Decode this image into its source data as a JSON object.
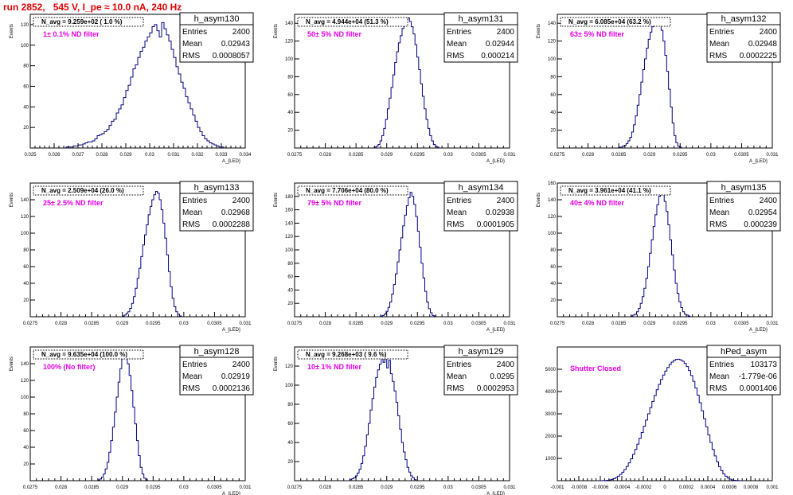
{
  "run_title": "run 2852,   545 V, I_pe ≈ 10.0 nA, 240 Hz",
  "colors": {
    "hist": "#000080",
    "magenta": "#e600e6",
    "title": "#e00000"
  },
  "chart_data": [
    {
      "type": "histogram",
      "id": "h_asym130",
      "stats": {
        "name": "h_asym130",
        "entries": "2400",
        "mean": "0.02943",
        "rms": "0.0008057"
      },
      "navg": "N_avg = 9.259e+02 ( 1.0 %)",
      "filter": "1± 0.1% ND filter",
      "ylabel": "Events",
      "xlabel": "A_{LED}",
      "xlim": [
        0.025,
        0.034
      ],
      "ylim": [
        0,
        130
      ],
      "xticks": [
        "0.025",
        "0.026",
        "0.027",
        "0.028",
        "0.029",
        "0.03",
        "0.031",
        "0.032",
        "0.033",
        "0.034"
      ],
      "yticks": [
        "20",
        "40",
        "60",
        "80",
        "100",
        "120"
      ],
      "ytick_values": [
        20,
        40,
        60,
        80,
        100,
        120
      ],
      "x_start": 0.0265,
      "bin_width": 0.0001,
      "counts": [
        1,
        1,
        1,
        2,
        2,
        3,
        3,
        4,
        5,
        6,
        6,
        7,
        9,
        12,
        13,
        14,
        16,
        18,
        22,
        26,
        28,
        34,
        38,
        42,
        49,
        56,
        61,
        69,
        77,
        81,
        88,
        94,
        98,
        104,
        108,
        112,
        118,
        120,
        114,
        108,
        122,
        116,
        110,
        104,
        96,
        88,
        79,
        72,
        64,
        58,
        50,
        44,
        38,
        32,
        26,
        20,
        16,
        12,
        9,
        7,
        5,
        4,
        3,
        2,
        1,
        1
      ]
    },
    {
      "type": "histogram",
      "id": "h_asym131",
      "stats": {
        "name": "h_asym131",
        "entries": "2400",
        "mean": "0.02944",
        "rms": "0.000214"
      },
      "navg": "N_avg = 4.944e+04 (51.3 %)",
      "filter": "50± 5% ND filter",
      "ylabel": "Events",
      "xlabel": "A_{LED}",
      "xlim": [
        0.0275,
        0.031
      ],
      "ylim": [
        0,
        150
      ],
      "xticks": [
        "0.0275",
        "0.028",
        "0.0285",
        "0.029",
        "0.0295",
        "0.03",
        "0.0305",
        "0.031"
      ],
      "yticks": [
        "20",
        "40",
        "60",
        "80",
        "100",
        "120",
        "140"
      ],
      "ytick_values": [
        20,
        40,
        60,
        80,
        100,
        120,
        140
      ],
      "x_start": 0.0288,
      "bin_width": 3e-05,
      "counts": [
        1,
        2,
        4,
        8,
        14,
        22,
        32,
        44,
        56,
        68,
        82,
        96,
        108,
        118,
        126,
        134,
        140,
        144,
        146,
        142,
        136,
        128,
        116,
        102,
        88,
        72,
        58,
        44,
        32,
        22,
        14,
        8,
        4,
        2,
        1
      ]
    },
    {
      "type": "histogram",
      "id": "h_asym132",
      "stats": {
        "name": "h_asym132",
        "entries": "2400",
        "mean": "0.02948",
        "rms": "0.0002225"
      },
      "navg": "N_avg = 6.085e+04 (63.2 %)",
      "filter": "63± 5% ND filter",
      "ylabel": "Events",
      "xlabel": "A_{LED}",
      "xlim": [
        0.0275,
        0.031
      ],
      "ylim": [
        0,
        150
      ],
      "xticks": [
        "0.0275",
        "0.028",
        "0.0285",
        "0.029",
        "0.0295",
        "0.03",
        "0.0305",
        "0.031"
      ],
      "yticks": [
        "20",
        "40",
        "60",
        "80",
        "100",
        "120",
        "140"
      ],
      "ytick_values": [
        20,
        40,
        60,
        80,
        100,
        120,
        140
      ],
      "x_start": 0.0285,
      "bin_width": 3e-05,
      "counts": [
        1,
        1,
        2,
        3,
        5,
        8,
        12,
        18,
        26,
        36,
        48,
        60,
        74,
        88,
        100,
        112,
        122,
        130,
        136,
        142,
        144,
        146,
        140,
        132,
        120,
        104,
        86,
        66,
        46,
        28,
        14,
        6,
        2,
        1
      ]
    },
    {
      "type": "histogram",
      "id": "h_asym133",
      "stats": {
        "name": "h_asym133",
        "entries": "2400",
        "mean": "0.02968",
        "rms": "0.0002288"
      },
      "navg": "N_avg = 2.509e+04 (26.0 %)",
      "filter": "25± 2.5% ND filter",
      "ylabel": "Events",
      "xlabel": "A_{LED}",
      "xlim": [
        0.0275,
        0.031
      ],
      "ylim": [
        0,
        160
      ],
      "xticks": [
        "0.0275",
        "0.028",
        "0.0285",
        "0.029",
        "0.0295",
        "0.03",
        "0.0305",
        "0.031"
      ],
      "yticks": [
        "20",
        "40",
        "60",
        "80",
        "100",
        "120",
        "140"
      ],
      "ytick_values": [
        20,
        40,
        60,
        80,
        100,
        120,
        140
      ],
      "x_start": 0.029,
      "bin_width": 3e-05,
      "counts": [
        1,
        2,
        4,
        6,
        10,
        16,
        24,
        34,
        46,
        58,
        72,
        86,
        98,
        110,
        122,
        132,
        140,
        146,
        150,
        148,
        140,
        128,
        112,
        94,
        74,
        54,
        36,
        22,
        12,
        6,
        3,
        1
      ]
    },
    {
      "type": "histogram",
      "id": "h_asym134",
      "stats": {
        "name": "h_asym134",
        "entries": "2400",
        "mean": "0.02938",
        "rms": "0.0001905"
      },
      "navg": "N_avg = 7.706e+04 (80.0 %)",
      "filter": "79± 5% ND filter",
      "ylabel": "Events",
      "xlabel": "A_{LED}",
      "xlim": [
        0.0275,
        0.031
      ],
      "ylim": [
        0,
        200
      ],
      "xticks": [
        "0.0275",
        "0.028",
        "0.0285",
        "0.029",
        "0.0295",
        "0.03",
        "0.0305",
        "0.031"
      ],
      "yticks": [
        "20",
        "40",
        "60",
        "80",
        "100",
        "120",
        "140",
        "160",
        "180"
      ],
      "ytick_values": [
        20,
        40,
        60,
        80,
        100,
        120,
        140,
        160,
        180
      ],
      "x_start": 0.0289,
      "bin_width": 3e-05,
      "counts": [
        1,
        2,
        4,
        8,
        14,
        22,
        34,
        48,
        64,
        82,
        100,
        118,
        136,
        152,
        166,
        178,
        186,
        180,
        168,
        150,
        128,
        104,
        80,
        58,
        38,
        22,
        12,
        6,
        2,
        1
      ]
    },
    {
      "type": "histogram",
      "id": "h_asym135",
      "stats": {
        "name": "h_asym135",
        "entries": "2400",
        "mean": "0.02954",
        "rms": "0.000239"
      },
      "navg": "N_avg = 3.961e+04 (41.1 %)",
      "filter": "40± 4% ND filter",
      "ylabel": "Events",
      "xlabel": "A_{LED}",
      "xlim": [
        0.0275,
        0.031
      ],
      "ylim": [
        0,
        160
      ],
      "xticks": [
        "0.0275",
        "0.028",
        "0.0285",
        "0.029",
        "0.0295",
        "0.03",
        "0.0305",
        "0.031"
      ],
      "yticks": [
        "20",
        "40",
        "60",
        "80",
        "100",
        "120",
        "140",
        "160"
      ],
      "ytick_values": [
        20,
        40,
        60,
        80,
        100,
        120,
        140,
        160
      ],
      "x_start": 0.0287,
      "bin_width": 3e-05,
      "counts": [
        1,
        2,
        3,
        6,
        10,
        16,
        24,
        34,
        46,
        60,
        76,
        92,
        108,
        122,
        134,
        144,
        150,
        146,
        138,
        126,
        110,
        92,
        74,
        56,
        40,
        28,
        18,
        11,
        6,
        3,
        2,
        1
      ]
    },
    {
      "type": "histogram",
      "id": "h_asym128",
      "stats": {
        "name": "h_asym128",
        "entries": "2400",
        "mean": "0.02919",
        "rms": "0.0002136"
      },
      "navg": "N_avg = 9.635e+04 (100.0 %)",
      "filter": "100% (No filter)",
      "ylabel": "Events",
      "xlabel": "A_{LED}",
      "xlim": [
        0.0275,
        0.031
      ],
      "ylim": [
        0,
        160
      ],
      "xticks": [
        "0.0275",
        "0.028",
        "0.0285",
        "0.029",
        "0.0295",
        "0.03",
        "0.0305",
        "0.031"
      ],
      "yticks": [
        "20",
        "40",
        "60",
        "80",
        "100",
        "120",
        "140"
      ],
      "ytick_values": [
        20,
        40,
        60,
        80,
        100,
        120,
        140
      ],
      "x_start": 0.0286,
      "bin_width": 3e-05,
      "counts": [
        1,
        2,
        4,
        8,
        14,
        22,
        34,
        48,
        64,
        82,
        100,
        118,
        134,
        146,
        152,
        148,
        140,
        126,
        108,
        88,
        68,
        48,
        30,
        16,
        8,
        3,
        1
      ]
    },
    {
      "type": "histogram",
      "id": "h_asym129",
      "stats": {
        "name": "h_asym129",
        "entries": "2400",
        "mean": "0.0295",
        "rms": "0.0002953"
      },
      "navg": "N_avg = 9.268e+03 ( 9.6 %)",
      "filter": "10± 1% ND filter",
      "ylabel": "Events",
      "xlabel": "A_{LED}",
      "xlim": [
        0.0275,
        0.031
      ],
      "ylim": [
        0,
        140
      ],
      "xticks": [
        "0.0275",
        "0.028",
        "0.0285",
        "0.029",
        "0.0295",
        "0.03",
        "0.0305",
        "0.031"
      ],
      "yticks": [
        "20",
        "40",
        "60",
        "80",
        "100",
        "120"
      ],
      "ytick_values": [
        20,
        40,
        60,
        80,
        100,
        120
      ],
      "x_start": 0.0284,
      "bin_width": 3e-05,
      "counts": [
        1,
        2,
        3,
        5,
        8,
        12,
        18,
        26,
        36,
        48,
        60,
        74,
        86,
        98,
        108,
        116,
        122,
        128,
        124,
        130,
        118,
        126,
        112,
        104,
        94,
        82,
        68,
        54,
        40,
        30,
        22,
        14,
        9,
        5,
        3,
        1
      ]
    },
    {
      "type": "histogram",
      "id": "hPed_asym",
      "stats": {
        "name": "hPed_asym",
        "entries": "103173",
        "mean": "-1.779e-06",
        "rms": "0.0001406"
      },
      "navg": "",
      "filter": "Shutter Closed",
      "ylabel": "",
      "xlabel": "",
      "xlim": [
        -0.001,
        0.001
      ],
      "ylim": [
        0,
        6000
      ],
      "xticks": [
        "-0.001",
        "-0.0008",
        "-0.0006",
        "-0.0004",
        "-0.0002",
        "0",
        "0.0002",
        "0.0004",
        "0.0006",
        "0.0008",
        "0.001"
      ],
      "yticks": [
        "1000",
        "2000",
        "3000",
        "4000",
        "5000"
      ],
      "ytick_values": [
        1000,
        2000,
        3000,
        4000,
        5000
      ],
      "x_start": -0.0006,
      "bin_width": 2e-05,
      "counts": [
        2,
        5,
        10,
        20,
        35,
        60,
        95,
        140,
        200,
        280,
        380,
        500,
        640,
        800,
        980,
        1180,
        1400,
        1640,
        1900,
        2160,
        2440,
        2720,
        3000,
        3280,
        3560,
        3820,
        4080,
        4320,
        4540,
        4740,
        4920,
        5080,
        5220,
        5320,
        5400,
        5440,
        5450,
        5420,
        5360,
        5260,
        5120,
        4940,
        4720,
        4460,
        4160,
        3840,
        3500,
        3140,
        2780,
        2420,
        2060,
        1720,
        1400,
        1110,
        850,
        630,
        450,
        310,
        200,
        120,
        70,
        38,
        18,
        8,
        3,
        1
      ]
    }
  ]
}
